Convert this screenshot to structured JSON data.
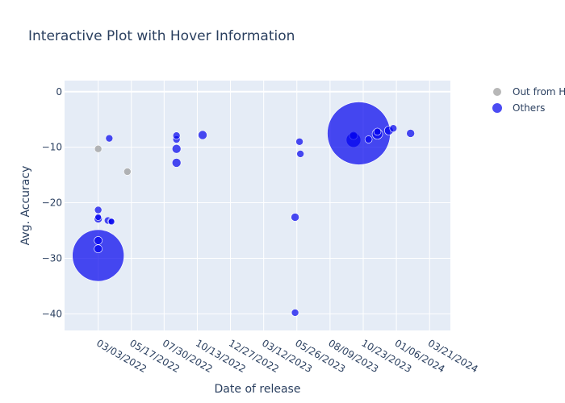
{
  "chart_data": {
    "type": "scatter",
    "title": "Interactive Plot with Hover Information",
    "xlabel": "Date of release",
    "ylabel": "Avg. Accuracy",
    "ylim": [
      -43,
      2
    ],
    "xlim": [
      "2021-12-17",
      "2024-05-07"
    ],
    "x_tick_labels": [
      "03/03/2022",
      "05/17/2022",
      "07/30/2022",
      "10/13/2022",
      "12/27/2022",
      "03/12/2023",
      "05/26/2023",
      "08/09/2023",
      "10/23/2023",
      "01/06/2024",
      "03/21/2024"
    ],
    "y_ticks": [
      0,
      -10,
      -20,
      -30,
      -40
    ],
    "y_tick_labels": [
      "0",
      "−10",
      "−20",
      "−30",
      "−40"
    ],
    "grid": true,
    "legend_position": "top-right",
    "series": [
      {
        "name": "Out from HF",
        "color": "#999999",
        "points": [
          {
            "x": "2022-03-03",
            "y": -10.3,
            "size": 9
          },
          {
            "x": "2022-05-08",
            "y": -14.4,
            "size": 9
          }
        ]
      },
      {
        "name": "Others",
        "color": "#0000ee",
        "points": [
          {
            "x": "2022-03-03",
            "y": -29.5,
            "size": 64
          },
          {
            "x": "2022-03-03",
            "y": -28.3,
            "size": 10
          },
          {
            "x": "2022-03-03",
            "y": -26.8,
            "size": 10
          },
          {
            "x": "2022-03-03",
            "y": -22.9,
            "size": 10
          },
          {
            "x": "2022-03-03",
            "y": -22.6,
            "size": 8
          },
          {
            "x": "2022-03-03",
            "y": -21.3,
            "size": 9
          },
          {
            "x": "2022-03-25",
            "y": -23.2,
            "size": 9
          },
          {
            "x": "2022-04-01",
            "y": -23.3,
            "size": 8
          },
          {
            "x": "2022-04-02",
            "y": -23.4,
            "size": 8
          },
          {
            "x": "2022-03-28",
            "y": -8.4,
            "size": 9
          },
          {
            "x": "2022-08-27",
            "y": -12.8,
            "size": 11
          },
          {
            "x": "2022-08-27",
            "y": -10.3,
            "size": 11
          },
          {
            "x": "2022-08-27",
            "y": -8.6,
            "size": 9
          },
          {
            "x": "2022-08-27",
            "y": -7.9,
            "size": 9
          },
          {
            "x": "2022-10-25",
            "y": -7.8,
            "size": 11
          },
          {
            "x": "2023-05-22",
            "y": -22.6,
            "size": 10
          },
          {
            "x": "2023-05-22",
            "y": -39.8,
            "size": 9
          },
          {
            "x": "2023-06-01",
            "y": -9.0,
            "size": 9
          },
          {
            "x": "2023-06-03",
            "y": -11.2,
            "size": 9
          },
          {
            "x": "2023-10-01",
            "y": -8.7,
            "size": 18
          },
          {
            "x": "2023-10-01",
            "y": -7.9,
            "size": 10
          },
          {
            "x": "2023-10-13",
            "y": -7.5,
            "size": 78
          },
          {
            "x": "2023-11-04",
            "y": -8.6,
            "size": 9
          },
          {
            "x": "2023-11-24",
            "y": -7.6,
            "size": 13
          },
          {
            "x": "2023-11-24",
            "y": -7.2,
            "size": 9
          },
          {
            "x": "2023-12-20",
            "y": -7.0,
            "size": 11
          },
          {
            "x": "2023-12-30",
            "y": -6.6,
            "size": 9
          },
          {
            "x": "2024-02-07",
            "y": -7.5,
            "size": 10
          }
        ]
      }
    ]
  }
}
